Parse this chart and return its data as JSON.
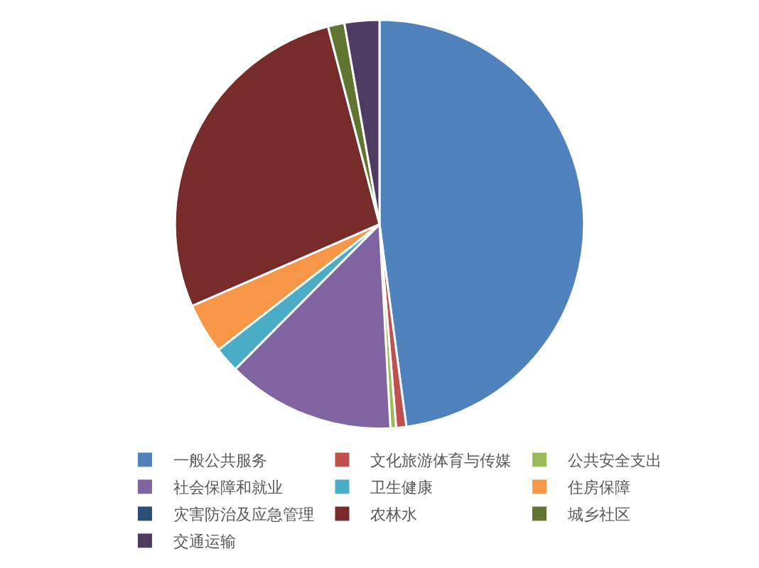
{
  "chart_data": {
    "type": "pie",
    "categories": [
      "一般公共服务",
      "文化旅游体育与传媒",
      "公共安全支出",
      "社会保障和就业",
      "卫生健康",
      "住房保障",
      "灾害防治及应急管理",
      "农林水",
      "城乡社区",
      "交通运输"
    ],
    "values": [
      47.9,
      0.8,
      0.45,
      13.3,
      2,
      4,
      0,
      27.5,
      1.3,
      2.75
    ],
    "colors": [
      "#4f81bd",
      "#c0504d",
      "#9bbb59",
      "#8064a2",
      "#4bacc6",
      "#f79646",
      "#2c4d75",
      "#772c2a",
      "#5f7530",
      "#4d3b62"
    ],
    "legend": "bottom"
  }
}
